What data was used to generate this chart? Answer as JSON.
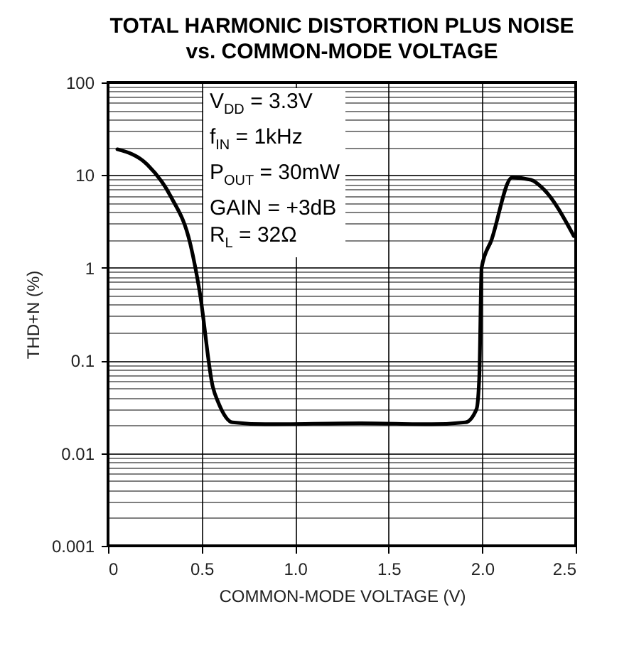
{
  "chart_data": {
    "type": "line",
    "title": "TOTAL HARMONIC DISTORTION PLUS NOISE\nvs. COMMON-MODE VOLTAGE",
    "xlabel": "COMMON-MODE VOLTAGE (V)",
    "ylabel": "THD+N (%)",
    "annotations": [
      "V$_{DD}$ = 3.3V",
      "f$_{IN}$ = 1kHz",
      "P$_{OUT}$ = 30mW",
      "GAIN = +3dB",
      "R$_{L}$ = 32Ω"
    ],
    "series": [
      {
        "color": "#000000",
        "x": [
          0.05,
          0.21,
          0.335,
          0.44,
          0.49,
          0.56,
          0.59,
          0.665,
          0.84,
          1.35,
          1.73,
          1.91,
          1.97,
          1.985,
          1.997,
          2.05,
          2.16,
          2.26,
          2.33,
          2.49
        ],
        "values": [
          19,
          13,
          5.9,
          1.8,
          0.55,
          0.052,
          0.035,
          0.0215,
          0.0205,
          0.021,
          0.0205,
          0.0215,
          0.03,
          0.07,
          1.0,
          2.0,
          9.4,
          8.9,
          7,
          2.2
        ]
      }
    ],
    "xlim": [
      0,
      2.5
    ],
    "xticks": [
      0,
      0.5,
      {
        "value": 1,
        "label": "1.0"
      },
      1.5,
      {
        "value": 2,
        "label": "2.0"
      },
      2.5
    ],
    "ylim": [
      0.001,
      100
    ],
    "yticks": [
      0.001,
      0.01,
      0.1,
      1,
      10,
      100
    ],
    "log": "y",
    "grid": true,
    "line_style": "solid"
  }
}
